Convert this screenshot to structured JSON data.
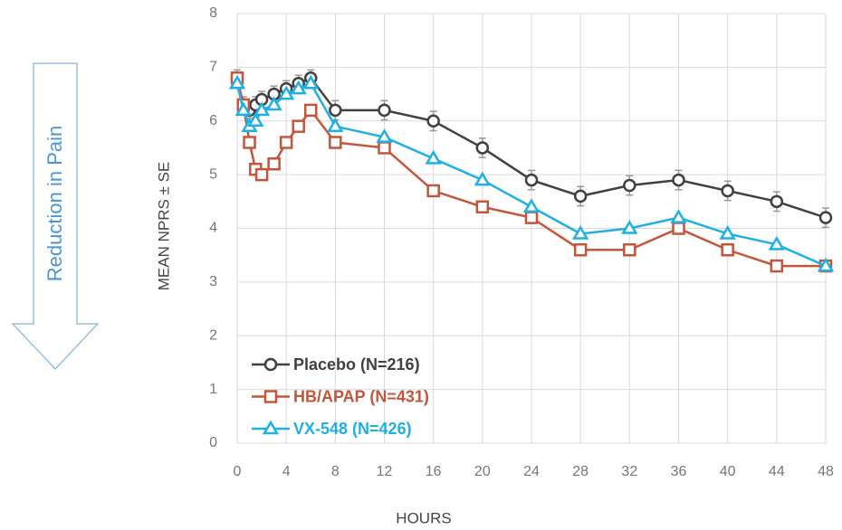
{
  "chart_data": {
    "type": "line",
    "annotation": "Reduction in Pain",
    "ylabel": "MEAN NPRS ± SE",
    "xlabel": "HOURS",
    "x": [
      0,
      0.5,
      1,
      1.5,
      2,
      3,
      4,
      5,
      6,
      8,
      12,
      16,
      20,
      24,
      28,
      32,
      36,
      40,
      44,
      48
    ],
    "series": [
      {
        "name": "Placebo (N=216)",
        "color": "#404040",
        "marker": "circle",
        "values": [
          6.8,
          6.3,
          6.2,
          6.3,
          6.4,
          6.5,
          6.6,
          6.7,
          6.8,
          6.2,
          6.2,
          6.0,
          5.5,
          4.9,
          4.6,
          4.8,
          4.9,
          4.7,
          4.5,
          4.2
        ],
        "errors": [
          0.15,
          0.15,
          0.15,
          0.15,
          0.15,
          0.15,
          0.15,
          0.15,
          0.15,
          0.18,
          0.18,
          0.18,
          0.18,
          0.18,
          0.18,
          0.18,
          0.18,
          0.18,
          0.18,
          0.18
        ]
      },
      {
        "name": "HB/APAP (N=431)",
        "color": "#c4553b",
        "marker": "square",
        "values": [
          6.8,
          6.3,
          5.6,
          5.1,
          5.0,
          5.2,
          5.6,
          5.9,
          6.2,
          5.6,
          5.5,
          4.7,
          4.4,
          4.2,
          3.6,
          3.6,
          4.0,
          3.6,
          3.3,
          3.3
        ]
      },
      {
        "name": "VX-548 (N=426)",
        "color": "#1fb0e3",
        "marker": "triangle",
        "values": [
          6.7,
          6.2,
          5.9,
          6.0,
          6.2,
          6.3,
          6.5,
          6.6,
          6.7,
          5.9,
          5.7,
          5.3,
          4.9,
          4.4,
          3.9,
          4.0,
          4.2,
          3.9,
          3.7,
          3.3
        ]
      }
    ],
    "xlim": [
      0,
      48
    ],
    "xticks": [
      0,
      4,
      8,
      12,
      16,
      20,
      24,
      28,
      32,
      36,
      40,
      44,
      48
    ],
    "ylim": [
      0,
      8
    ],
    "yticks": [
      0,
      1,
      2,
      3,
      4,
      5,
      6,
      7,
      8
    ],
    "grid": true,
    "legend": "lower left"
  }
}
